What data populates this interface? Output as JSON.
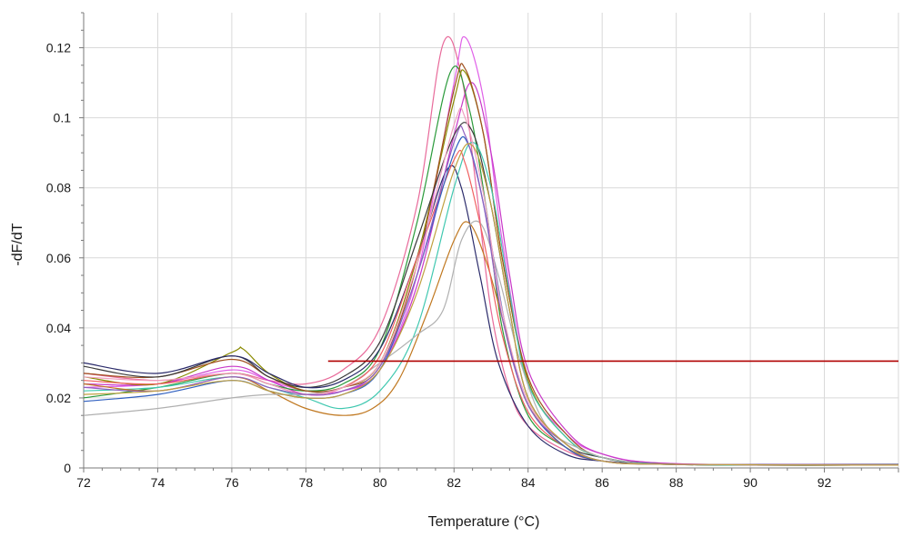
{
  "chart_data": {
    "type": "line",
    "title": "",
    "xlabel": "Temperature (°C)",
    "ylabel": "-dF/dT",
    "xlim": [
      72,
      94
    ],
    "ylim": [
      0,
      0.13
    ],
    "x_ticks": [
      72,
      74,
      76,
      78,
      80,
      82,
      84,
      86,
      88,
      90,
      92
    ],
    "x_tick_labels": [
      "72",
      "74",
      "76",
      "78",
      "80",
      "82",
      "84",
      "86",
      "88",
      "90",
      "92"
    ],
    "y_ticks": [
      0,
      0.02,
      0.04,
      0.06,
      0.08,
      0.1,
      0.12
    ],
    "y_tick_labels": [
      "0",
      "0.02",
      "0.04",
      "0.06",
      "0.08",
      "0.1",
      "0.12"
    ],
    "grid": true,
    "legend": "none",
    "threshold": {
      "x_start": 78.6,
      "x_end": 94,
      "y": 0.0305,
      "color": "#b00000"
    },
    "series": [
      {
        "color": "#e86a9a",
        "values": [
          [
            72,
            0.027
          ],
          [
            74,
            0.025
          ],
          [
            76,
            0.027
          ],
          [
            77,
            0.025
          ],
          [
            78,
            0.024
          ],
          [
            79,
            0.028
          ],
          [
            80,
            0.04
          ],
          [
            81,
            0.075
          ],
          [
            81.7,
            0.121
          ],
          [
            82.2,
            0.112
          ],
          [
            82.6,
            0.08
          ],
          [
            83,
            0.045
          ],
          [
            83.5,
            0.022
          ],
          [
            84,
            0.012
          ],
          [
            85,
            0.005
          ],
          [
            86,
            0.002
          ],
          [
            88,
            0.001
          ],
          [
            94,
            0.0008
          ]
        ]
      },
      {
        "color": "#e060e8",
        "values": [
          [
            72,
            0.023
          ],
          [
            74,
            0.024
          ],
          [
            76,
            0.028
          ],
          [
            77,
            0.025
          ],
          [
            78,
            0.022
          ],
          [
            79,
            0.022
          ],
          [
            80,
            0.028
          ],
          [
            81,
            0.055
          ],
          [
            82,
            0.11
          ],
          [
            82.3,
            0.123
          ],
          [
            82.8,
            0.105
          ],
          [
            83.3,
            0.065
          ],
          [
            84,
            0.025
          ],
          [
            85,
            0.01
          ],
          [
            86,
            0.004
          ],
          [
            88,
            0.0012
          ],
          [
            94,
            0.001
          ]
        ]
      },
      {
        "color": "#c838c8",
        "values": [
          [
            72,
            0.024
          ],
          [
            74,
            0.024
          ],
          [
            76,
            0.029
          ],
          [
            77,
            0.025
          ],
          [
            78,
            0.021
          ],
          [
            79,
            0.022
          ],
          [
            80,
            0.028
          ],
          [
            81,
            0.052
          ],
          [
            82,
            0.095
          ],
          [
            82.5,
            0.11
          ],
          [
            83,
            0.09
          ],
          [
            83.5,
            0.055
          ],
          [
            84,
            0.028
          ],
          [
            85,
            0.011
          ],
          [
            86,
            0.004
          ],
          [
            88,
            0.0012
          ],
          [
            94,
            0.001
          ]
        ]
      },
      {
        "color": "#2a9a3a",
        "values": [
          [
            72,
            0.02
          ],
          [
            74,
            0.023
          ],
          [
            76,
            0.027
          ],
          [
            77,
            0.024
          ],
          [
            78,
            0.022
          ],
          [
            79,
            0.024
          ],
          [
            80,
            0.034
          ],
          [
            81,
            0.07
          ],
          [
            81.9,
            0.113
          ],
          [
            82.4,
            0.103
          ],
          [
            82.9,
            0.072
          ],
          [
            83.3,
            0.04
          ],
          [
            84,
            0.015
          ],
          [
            85,
            0.006
          ],
          [
            86,
            0.002
          ],
          [
            88,
            0.001
          ],
          [
            94,
            0.0008
          ]
        ]
      },
      {
        "color": "#8a8a00",
        "values": [
          [
            72,
            0.026
          ],
          [
            74,
            0.024
          ],
          [
            76,
            0.033
          ],
          [
            76.3,
            0.034
          ],
          [
            77,
            0.027
          ],
          [
            78,
            0.022
          ],
          [
            79,
            0.023
          ],
          [
            80,
            0.03
          ],
          [
            81,
            0.06
          ],
          [
            82,
            0.105
          ],
          [
            82.3,
            0.113
          ],
          [
            82.8,
            0.095
          ],
          [
            83.3,
            0.06
          ],
          [
            84,
            0.025
          ],
          [
            85,
            0.009
          ],
          [
            86,
            0.003
          ],
          [
            88,
            0.001
          ],
          [
            94,
            0.0008
          ]
        ]
      },
      {
        "color": "#a05020",
        "values": [
          [
            72,
            0.027
          ],
          [
            74,
            0.026
          ],
          [
            76,
            0.031
          ],
          [
            77,
            0.026
          ],
          [
            78,
            0.022
          ],
          [
            79,
            0.023
          ],
          [
            80,
            0.029
          ],
          [
            81,
            0.058
          ],
          [
            82,
            0.108
          ],
          [
            82.3,
            0.114
          ],
          [
            82.8,
            0.095
          ],
          [
            83.3,
            0.06
          ],
          [
            84,
            0.026
          ],
          [
            85,
            0.01
          ],
          [
            86,
            0.003
          ],
          [
            88,
            0.001
          ],
          [
            94,
            0.0008
          ]
        ]
      },
      {
        "color": "#3a3a3a",
        "values": [
          [
            72,
            0.029
          ],
          [
            74,
            0.026
          ],
          [
            76,
            0.032
          ],
          [
            77,
            0.026
          ],
          [
            78,
            0.023
          ],
          [
            79,
            0.026
          ],
          [
            80,
            0.036
          ],
          [
            81,
            0.065
          ],
          [
            82,
            0.095
          ],
          [
            82.5,
            0.096
          ],
          [
            83,
            0.075
          ],
          [
            83.5,
            0.045
          ],
          [
            84,
            0.02
          ],
          [
            85,
            0.007
          ],
          [
            86,
            0.003
          ],
          [
            88,
            0.001
          ],
          [
            94,
            0.0008
          ]
        ]
      },
      {
        "color": "#2a2a6a",
        "values": [
          [
            72,
            0.03
          ],
          [
            74,
            0.027
          ],
          [
            76,
            0.032
          ],
          [
            77,
            0.027
          ],
          [
            78,
            0.023
          ],
          [
            79,
            0.025
          ],
          [
            80,
            0.034
          ],
          [
            81,
            0.06
          ],
          [
            81.8,
            0.085
          ],
          [
            82.2,
            0.08
          ],
          [
            82.7,
            0.055
          ],
          [
            83.2,
            0.03
          ],
          [
            84,
            0.012
          ],
          [
            85,
            0.004
          ],
          [
            86,
            0.002
          ],
          [
            88,
            0.001
          ],
          [
            94,
            0.001
          ]
        ]
      },
      {
        "color": "#40c8b0",
        "values": [
          [
            72,
            0.022
          ],
          [
            74,
            0.023
          ],
          [
            76,
            0.026
          ],
          [
            77,
            0.023
          ],
          [
            78,
            0.02
          ],
          [
            79,
            0.017
          ],
          [
            80,
            0.022
          ],
          [
            81,
            0.04
          ],
          [
            82,
            0.08
          ],
          [
            82.5,
            0.093
          ],
          [
            83,
            0.08
          ],
          [
            83.5,
            0.05
          ],
          [
            84,
            0.024
          ],
          [
            85,
            0.009
          ],
          [
            86,
            0.003
          ],
          [
            88,
            0.001
          ],
          [
            94,
            0.0008
          ]
        ]
      },
      {
        "color": "#c07820",
        "values": [
          [
            72,
            0.024
          ],
          [
            74,
            0.022
          ],
          [
            76,
            0.026
          ],
          [
            77,
            0.022
          ],
          [
            78,
            0.017
          ],
          [
            79,
            0.015
          ],
          [
            79.8,
            0.017
          ],
          [
            80.5,
            0.025
          ],
          [
            81.3,
            0.045
          ],
          [
            82,
            0.065
          ],
          [
            82.4,
            0.07
          ],
          [
            82.9,
            0.058
          ],
          [
            83.5,
            0.035
          ],
          [
            84,
            0.018
          ],
          [
            85,
            0.006
          ],
          [
            86,
            0.002
          ],
          [
            88,
            0.001
          ],
          [
            94,
            0.0008
          ]
        ]
      },
      {
        "color": "#b0b0b0",
        "values": [
          [
            72,
            0.015
          ],
          [
            74,
            0.017
          ],
          [
            76,
            0.02
          ],
          [
            77,
            0.021
          ],
          [
            78,
            0.021
          ],
          [
            79,
            0.023
          ],
          [
            80,
            0.03
          ],
          [
            81,
            0.038
          ],
          [
            81.7,
            0.045
          ],
          [
            82.2,
            0.065
          ],
          [
            82.7,
            0.07
          ],
          [
            83.2,
            0.055
          ],
          [
            83.8,
            0.03
          ],
          [
            84.5,
            0.012
          ],
          [
            85.5,
            0.005
          ],
          [
            86.5,
            0.002
          ],
          [
            88,
            0.001
          ],
          [
            94,
            0.0008
          ]
        ]
      },
      {
        "color": "#f06060",
        "values": [
          [
            72,
            0.025
          ],
          [
            74,
            0.024
          ],
          [
            76,
            0.027
          ],
          [
            77,
            0.024
          ],
          [
            78,
            0.021
          ],
          [
            79,
            0.023
          ],
          [
            80,
            0.032
          ],
          [
            81,
            0.06
          ],
          [
            82,
            0.088
          ],
          [
            82.3,
            0.087
          ],
          [
            82.8,
            0.065
          ],
          [
            83.3,
            0.038
          ],
          [
            84,
            0.016
          ],
          [
            85,
            0.006
          ],
          [
            86,
            0.002
          ],
          [
            88,
            0.001
          ],
          [
            94,
            0.0008
          ]
        ]
      },
      {
        "color": "#3060c0",
        "values": [
          [
            72,
            0.019
          ],
          [
            74,
            0.021
          ],
          [
            76,
            0.025
          ],
          [
            77,
            0.022
          ],
          [
            78,
            0.02
          ],
          [
            79,
            0.021
          ],
          [
            80,
            0.028
          ],
          [
            81,
            0.055
          ],
          [
            82,
            0.09
          ],
          [
            82.4,
            0.092
          ],
          [
            82.9,
            0.07
          ],
          [
            83.4,
            0.04
          ],
          [
            84,
            0.018
          ],
          [
            85,
            0.006
          ],
          [
            86,
            0.002
          ],
          [
            88,
            0.001
          ],
          [
            94,
            0.0008
          ]
        ]
      },
      {
        "color": "#f0a0c0",
        "values": [
          [
            72,
            0.026
          ],
          [
            74,
            0.025
          ],
          [
            76,
            0.027
          ],
          [
            77,
            0.024
          ],
          [
            78,
            0.021
          ],
          [
            79,
            0.023
          ],
          [
            80,
            0.03
          ],
          [
            81,
            0.058
          ],
          [
            82,
            0.098
          ],
          [
            82.3,
            0.1
          ],
          [
            82.8,
            0.078
          ],
          [
            83.3,
            0.045
          ],
          [
            84,
            0.019
          ],
          [
            85,
            0.007
          ],
          [
            86,
            0.002
          ],
          [
            88,
            0.001
          ],
          [
            94,
            0.0008
          ]
        ]
      },
      {
        "color": "#9060c0",
        "values": [
          [
            72,
            0.023
          ],
          [
            74,
            0.022
          ],
          [
            76,
            0.026
          ],
          [
            77,
            0.023
          ],
          [
            78,
            0.021
          ],
          [
            79,
            0.022
          ],
          [
            80,
            0.029
          ],
          [
            81,
            0.055
          ],
          [
            82,
            0.093
          ],
          [
            82.3,
            0.095
          ],
          [
            82.8,
            0.075
          ],
          [
            83.3,
            0.043
          ],
          [
            84,
            0.018
          ],
          [
            85,
            0.007
          ],
          [
            86,
            0.002
          ],
          [
            88,
            0.001
          ],
          [
            94,
            0.0008
          ]
        ]
      },
      {
        "color": "#c0a040",
        "values": [
          [
            72,
            0.021
          ],
          [
            74,
            0.022
          ],
          [
            76,
            0.025
          ],
          [
            77,
            0.022
          ],
          [
            78,
            0.02
          ],
          [
            79,
            0.021
          ],
          [
            80,
            0.028
          ],
          [
            81,
            0.05
          ],
          [
            82,
            0.085
          ],
          [
            82.5,
            0.092
          ],
          [
            83,
            0.075
          ],
          [
            83.5,
            0.045
          ],
          [
            84,
            0.02
          ],
          [
            85,
            0.007
          ],
          [
            86,
            0.002
          ],
          [
            88,
            0.001
          ],
          [
            94,
            0.0008
          ]
        ]
      }
    ]
  }
}
